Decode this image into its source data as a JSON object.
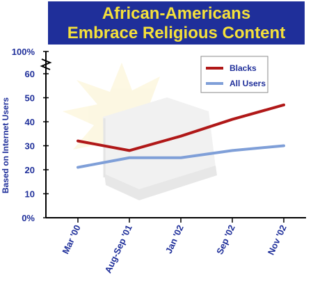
{
  "chart_data": {
    "type": "line",
    "title_lines": [
      "African-Americans",
      "Embrace Religious Content"
    ],
    "ylabel": "Based on Internet Users",
    "ylim": [
      0,
      100
    ],
    "axis_break": true,
    "y_tick_labels": [
      "0%",
      "10",
      "20",
      "30",
      "40",
      "50",
      "60",
      "100%"
    ],
    "categories": [
      "Mar '00",
      "Aug-Sep '01",
      "Jan '02",
      "Sep '02",
      "Nov '02"
    ],
    "series": [
      {
        "name": "Blacks",
        "values": [
          32,
          28,
          34,
          41,
          47
        ],
        "color": "#b01818"
      },
      {
        "name": "All Users",
        "values": [
          21,
          25,
          25,
          28,
          30
        ],
        "color": "#7f9fd8"
      }
    ],
    "legend_position": "top-right",
    "grid": false,
    "colors": {
      "title_bg": "#1f2f9a",
      "title_text": "#f5e13a",
      "axis_text": "#1f2f9a"
    }
  }
}
